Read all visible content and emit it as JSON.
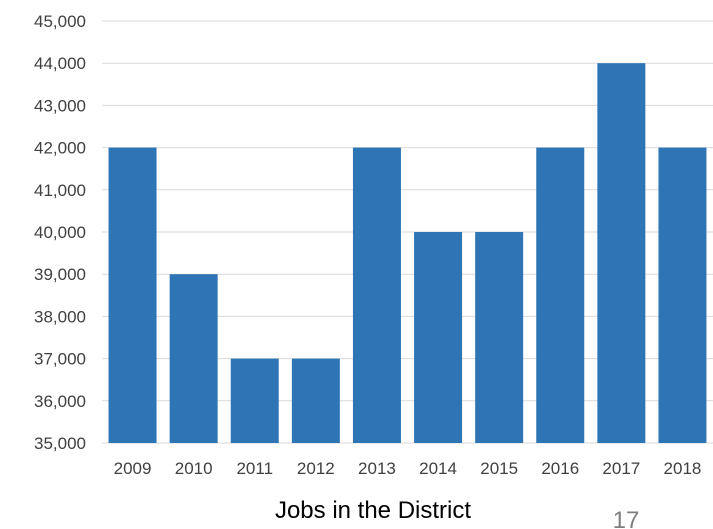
{
  "chart_data": {
    "type": "bar",
    "categories": [
      "2009",
      "2010",
      "2011",
      "2012",
      "2013",
      "2014",
      "2015",
      "2016",
      "2017",
      "2018"
    ],
    "values": [
      42000,
      39000,
      37000,
      37000,
      42000,
      40000,
      40000,
      42000,
      44000,
      42000
    ],
    "title": "",
    "xlabel": "Jobs in the District",
    "ylabel": "",
    "ylim": [
      35000,
      45000
    ],
    "yticks": [
      "35,000",
      "36,000",
      "37,000",
      "38,000",
      "39,000",
      "40,000",
      "41,000",
      "42,000",
      "43,000",
      "44,000",
      "45,000"
    ],
    "grid": true,
    "legend": "none",
    "bar_color": "#2e75b6",
    "grid_color": "#d9d9d9"
  },
  "slide": {
    "page_number": "17"
  }
}
